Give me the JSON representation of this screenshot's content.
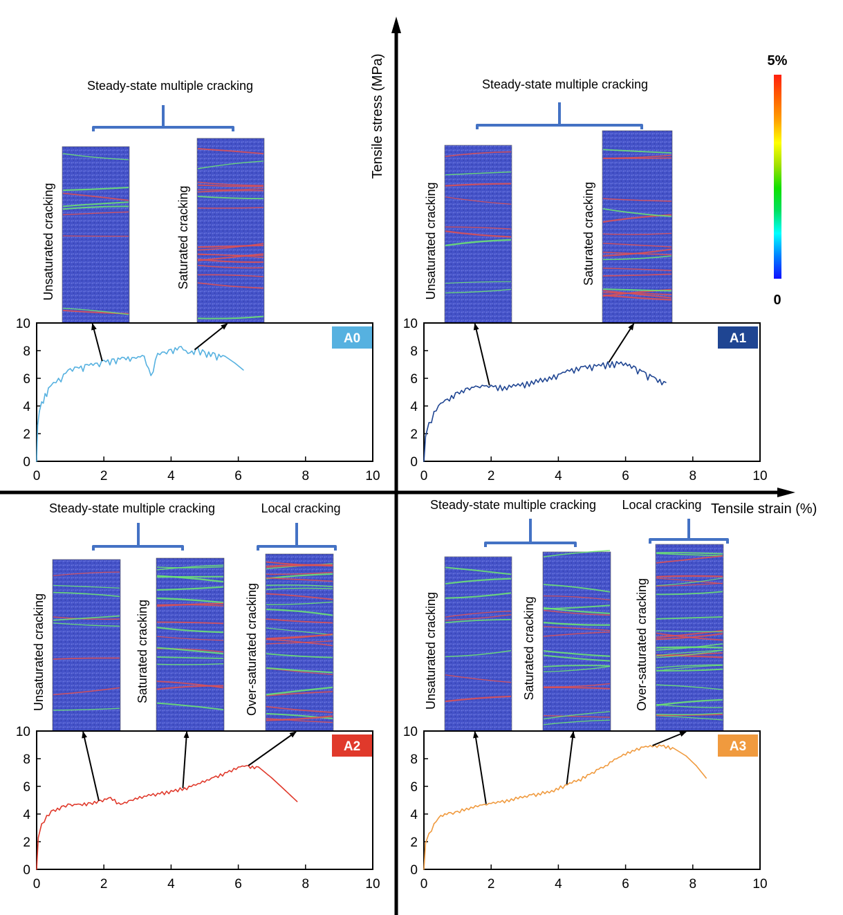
{
  "global_axes": {
    "x_label": "Tensile strain (%)",
    "y_label": "Tensile stress (MPa)"
  },
  "colorbar": {
    "max_label": "5%",
    "min_label": "0",
    "stops": [
      "#1010ff",
      "#0080ff",
      "#00ffff",
      "#00e060",
      "#10e000",
      "#a0e000",
      "#ffff00",
      "#ffa000",
      "#ff6000",
      "#ff2010"
    ]
  },
  "bracket_color": "#4472c4",
  "specimen_colors": {
    "blue": "#3f51c8",
    "crack_red": "#e05050",
    "crack_green": "#6ee870"
  },
  "chart_data": [
    {
      "id": "A0",
      "type": "line",
      "badge": "A0",
      "color": "#56b1e0",
      "xlim": [
        0,
        10
      ],
      "ylim": [
        0,
        10
      ],
      "xticks": [
        "0",
        "2",
        "4",
        "6",
        "8",
        "10"
      ],
      "yticks": [
        "0",
        "2",
        "4",
        "6",
        "8",
        "10"
      ],
      "xlabel": "",
      "ylabel": "",
      "x": [
        0,
        0.03,
        0.08,
        0.15,
        0.25,
        0.35,
        0.5,
        0.65,
        0.8,
        1.0,
        1.2,
        1.5,
        1.8,
        2.0,
        2.3,
        2.6,
        2.9,
        3.2,
        3.4,
        3.6,
        3.8,
        4.0,
        4.3,
        4.5,
        4.8,
        5.0,
        5.3,
        5.6,
        5.9,
        6.15
      ],
      "y": [
        0,
        2.6,
        3.6,
        4.3,
        4.9,
        5.3,
        5.7,
        6.0,
        6.3,
        6.7,
        6.8,
        7.0,
        7.1,
        7.3,
        7.4,
        7.5,
        7.5,
        7.6,
        6.2,
        7.8,
        7.9,
        8.1,
        8.3,
        7.8,
        8.2,
        7.9,
        7.8,
        7.6,
        7.1,
        6.6
      ],
      "groups": [
        {
          "title": "Steady-state multiple cracking",
          "members": [
            "Unsaturated cracking",
            "Saturated cracking"
          ]
        }
      ],
      "specimens": [
        "Unsaturated cracking",
        "Saturated cracking"
      ],
      "arrow_targets_x": [
        1.95,
        4.7
      ]
    },
    {
      "id": "A1",
      "type": "line",
      "badge": "A1",
      "color": "#1f4592",
      "xlim": [
        0,
        10
      ],
      "ylim": [
        0,
        10
      ],
      "xticks": [
        "0",
        "2",
        "4",
        "6",
        "8",
        "10"
      ],
      "yticks": [
        "0",
        "2",
        "4",
        "6",
        "8",
        "10"
      ],
      "xlabel": "",
      "ylabel": "",
      "x": [
        0,
        0.05,
        0.15,
        0.3,
        0.5,
        0.7,
        1.0,
        1.3,
        1.6,
        2.0,
        2.4,
        2.8,
        3.2,
        3.6,
        4.0,
        4.4,
        4.8,
        5.2,
        5.6,
        6.0,
        6.3,
        6.6,
        6.9,
        7.2
      ],
      "y": [
        0,
        1.8,
        2.8,
        3.6,
        4.2,
        4.5,
        5.0,
        5.3,
        5.4,
        5.5,
        5.4,
        5.6,
        5.8,
        6.0,
        6.3,
        6.7,
        6.9,
        7.0,
        7.2,
        7.1,
        6.8,
        6.4,
        6.0,
        5.7
      ],
      "groups": [
        {
          "title": "Steady-state multiple cracking",
          "members": [
            "Unsaturated cracking",
            "Saturated cracking"
          ]
        }
      ],
      "specimens": [
        "Unsaturated cracking",
        "Saturated cracking"
      ],
      "arrow_targets_x": [
        1.95,
        5.5
      ]
    },
    {
      "id": "A2",
      "type": "line",
      "badge": "A2",
      "color": "#e0392b",
      "xlim": [
        0,
        10
      ],
      "ylim": [
        0,
        10
      ],
      "xticks": [
        "0",
        "2",
        "4",
        "6",
        "8",
        "10"
      ],
      "yticks": [
        "0",
        "2",
        "4",
        "6",
        "8",
        "10"
      ],
      "xlabel": "",
      "ylabel": "",
      "x": [
        0,
        0.05,
        0.15,
        0.3,
        0.5,
        0.8,
        1.0,
        1.3,
        1.6,
        1.9,
        2.2,
        2.5,
        2.8,
        3.2,
        3.6,
        4.0,
        4.4,
        4.8,
        5.2,
        5.6,
        6.0,
        6.3,
        6.6,
        7.0,
        7.4,
        7.75
      ],
      "y": [
        0,
        2.3,
        3.3,
        3.9,
        4.3,
        4.6,
        4.7,
        4.7,
        4.8,
        5.0,
        5.2,
        4.7,
        5.0,
        5.3,
        5.5,
        5.7,
        5.9,
        6.2,
        6.6,
        7.0,
        7.4,
        7.5,
        7.4,
        6.6,
        5.7,
        4.9
      ],
      "groups": [
        {
          "title": "Steady-state multiple cracking",
          "members": [
            "Unsaturated cracking",
            "Saturated cracking"
          ]
        },
        {
          "title": "Local cracking",
          "members": [
            "Over-saturated cracking"
          ]
        }
      ],
      "specimens": [
        "Unsaturated cracking",
        "Saturated cracking",
        "Over-saturated cracking"
      ],
      "arrow_targets_x": [
        1.85,
        4.35,
        6.3
      ]
    },
    {
      "id": "A3",
      "type": "line",
      "badge": "A3",
      "color": "#f09a3e",
      "xlim": [
        0,
        10
      ],
      "ylim": [
        0,
        10
      ],
      "xticks": [
        "0",
        "2",
        "4",
        "6",
        "8",
        "10"
      ],
      "yticks": [
        "0",
        "2",
        "4",
        "6",
        "8",
        "10"
      ],
      "xlabel": "",
      "ylabel": "",
      "x": [
        0,
        0.05,
        0.15,
        0.3,
        0.5,
        0.8,
        1.0,
        1.4,
        1.8,
        2.2,
        2.6,
        3.0,
        3.4,
        3.8,
        4.2,
        4.6,
        5.0,
        5.4,
        5.8,
        6.2,
        6.6,
        7.0,
        7.4,
        7.8,
        8.1,
        8.4
      ],
      "y": [
        0,
        1.9,
        2.6,
        3.3,
        3.9,
        4.1,
        4.2,
        4.5,
        4.7,
        4.9,
        5.1,
        5.3,
        5.5,
        5.7,
        6.1,
        6.5,
        7.0,
        7.5,
        8.1,
        8.6,
        8.9,
        9.0,
        8.8,
        8.2,
        7.5,
        6.6
      ],
      "groups": [
        {
          "title": "Steady-state multiple cracking",
          "members": [
            "Unsaturated cracking",
            "Saturated cracking"
          ]
        },
        {
          "title": "Local cracking",
          "members": [
            "Over-saturated cracking"
          ]
        }
      ],
      "specimens": [
        "Unsaturated cracking",
        "Saturated cracking",
        "Over-saturated cracking"
      ],
      "arrow_targets_x": [
        1.85,
        4.25,
        6.8
      ]
    }
  ]
}
